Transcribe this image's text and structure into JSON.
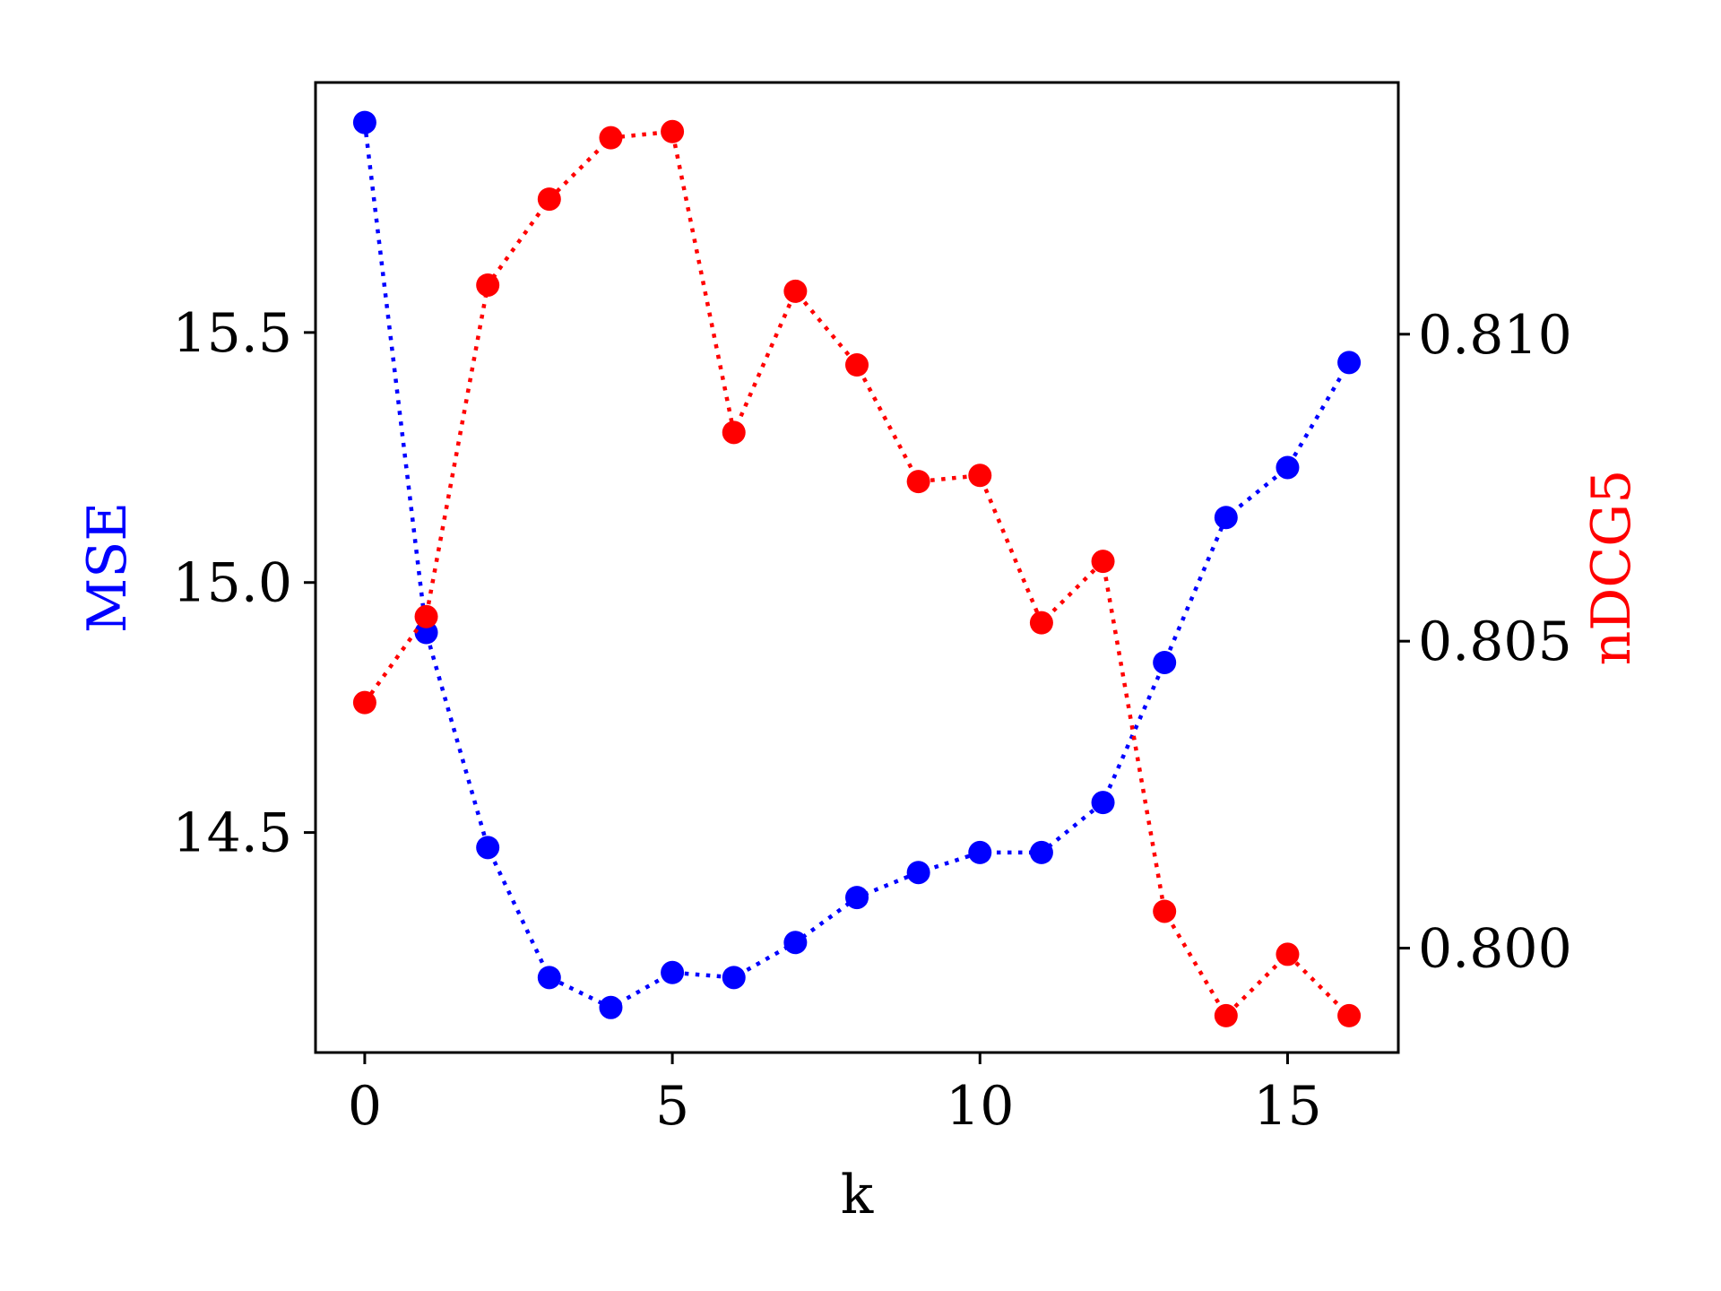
{
  "chart_data": {
    "type": "line",
    "xlabel": "k",
    "y_left_label": "MSE",
    "y_right_label": "nDCG5",
    "grid": false,
    "legend": "none",
    "line_style": "dotted",
    "marker": "circle",
    "xlim": [
      -0.8,
      16.8
    ],
    "ylim_left": [
      14.06,
      16.0
    ],
    "ylim_right": [
      0.7983,
      0.8141
    ],
    "x_ticks": [
      0,
      5,
      10,
      15
    ],
    "x_tick_labels": [
      "0",
      "5",
      "10",
      "15"
    ],
    "y_left_ticks": [
      14.5,
      15.0,
      15.5
    ],
    "y_left_tick_labels": [
      "14.5",
      "15.0",
      "15.5"
    ],
    "y_right_ticks": [
      0.8,
      0.805,
      0.81
    ],
    "y_right_tick_labels": [
      "0.800",
      "0.805",
      "0.810"
    ],
    "x": [
      0,
      1,
      2,
      3,
      4,
      5,
      6,
      7,
      8,
      9,
      10,
      11,
      12,
      13,
      14,
      15,
      16
    ],
    "series": [
      {
        "name": "MSE",
        "axis": "left",
        "color": "#0000ff",
        "values": [
          15.92,
          14.9,
          14.47,
          14.21,
          14.15,
          14.22,
          14.21,
          14.28,
          14.37,
          14.42,
          14.46,
          14.46,
          14.56,
          14.84,
          15.13,
          15.23,
          15.44
        ]
      },
      {
        "name": "nDCG5",
        "axis": "right",
        "color": "#ff0000",
        "values": [
          0.804,
          0.8054,
          0.8108,
          0.8122,
          0.8132,
          0.8133,
          0.8084,
          0.8107,
          0.8095,
          0.8076,
          0.8077,
          0.8053,
          0.8063,
          0.8006,
          0.7989,
          0.7999,
          0.7989
        ]
      }
    ]
  }
}
